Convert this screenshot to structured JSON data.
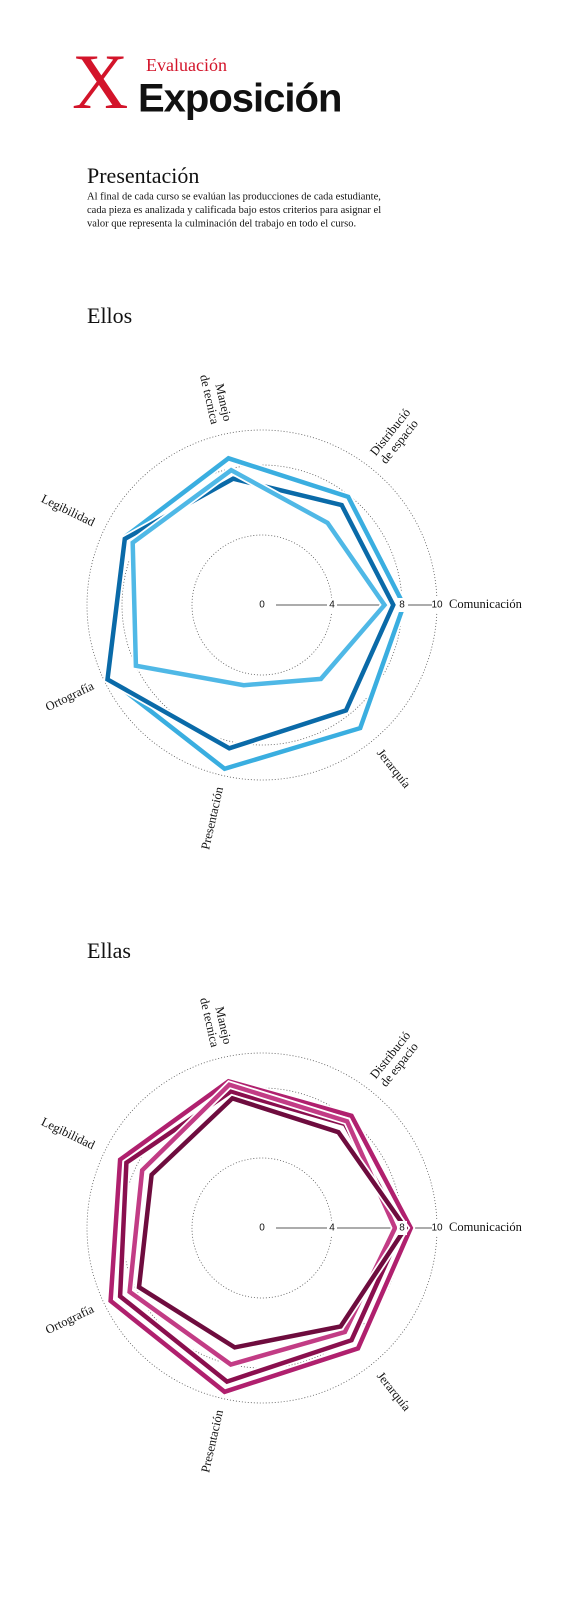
{
  "header": {
    "mark": "X",
    "kicker": "Evaluación",
    "title": "Exposición"
  },
  "intro": {
    "title": "Presentación",
    "lines": [
      "Al final de cada curso se evalúan las producciones de cada estudiante,",
      "cada pieza es analizada y calificada bajo estos criterios para asignar el",
      "valor que representa la culminación del trabajo en todo el curso."
    ]
  },
  "chart_data": [
    {
      "type": "radar",
      "title": "Ellos",
      "categories": [
        [
          "Comunicación"
        ],
        [
          "Jerarquía"
        ],
        [
          "Presentación"
        ],
        [
          "Ortografía"
        ],
        [
          "Legibilidad"
        ],
        [
          "Manejo",
          "de tecnica"
        ],
        [
          "Distribució",
          "de espacio"
        ]
      ],
      "rlim": [
        0,
        10
      ],
      "rticks": [
        0,
        4,
        8,
        10
      ],
      "series": [
        {
          "color": "#3aaee0",
          "values": [
            8.1,
            9.0,
            9.6,
            9.7,
            8.8,
            8.6,
            7.9
          ]
        },
        {
          "color": "#0a6aa8",
          "values": [
            7.5,
            7.7,
            8.4,
            9.8,
            8.7,
            7.4,
            7.3
          ]
        },
        {
          "color": "#4fb8e6",
          "values": [
            7.0,
            5.4,
            4.7,
            8.0,
            8.2,
            7.9,
            6.0
          ]
        }
      ]
    },
    {
      "type": "radar",
      "title": "Ellas",
      "categories": [
        [
          "Comunicación"
        ],
        [
          "Jerarquía"
        ],
        [
          "Presentación"
        ],
        [
          "Ortografía"
        ],
        [
          "Legibilidad"
        ],
        [
          "Manejo",
          "de tecnica"
        ],
        [
          "Distribució",
          "de espacio"
        ]
      ],
      "rlim": [
        0,
        10
      ],
      "rticks": [
        0,
        4,
        8,
        10
      ],
      "series": [
        {
          "color": "#b0206e",
          "values": [
            8.5,
            8.8,
            9.6,
            9.6,
            9.0,
            8.6,
            8.2
          ]
        },
        {
          "color": "#8a0f4e",
          "values": [
            8.0,
            8.2,
            9.0,
            9.0,
            8.6,
            8.0,
            7.6
          ]
        },
        {
          "color": "#c23c85",
          "values": [
            7.6,
            7.6,
            8.0,
            8.4,
            7.6,
            8.4,
            7.8
          ]
        },
        {
          "color": "#6e0c3e",
          "values": [
            8.2,
            7.2,
            7.0,
            7.8,
            7.0,
            7.6,
            7.0
          ]
        }
      ]
    }
  ]
}
